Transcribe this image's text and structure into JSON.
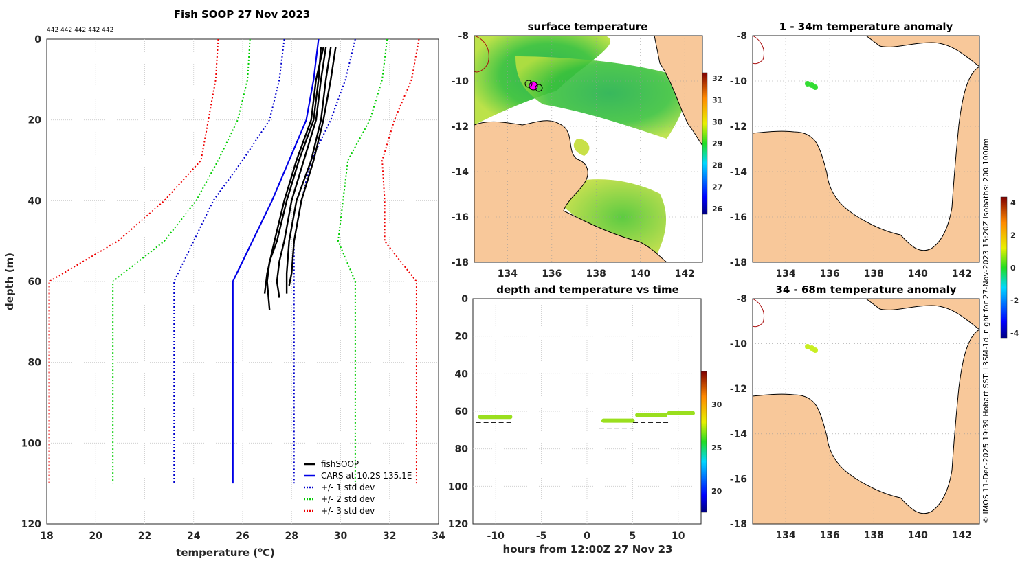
{
  "profile": {
    "title": "Fish SOOP 27 Nov 2023",
    "profile_ids": "442 442 442 442 442",
    "xlabel": "temperature (",
    "xlabel_sup": "o",
    "xlabel_end": "C)",
    "ylabel": "depth (m)",
    "xticks": [
      "18",
      "20",
      "22",
      "24",
      "26",
      "28",
      "30",
      "32",
      "34"
    ],
    "yticks": [
      "0",
      "20",
      "40",
      "60",
      "80",
      "100",
      "120"
    ],
    "legend": [
      "fishSOOP",
      "CARS at 10.2S 135.1E",
      "+/- 1 std dev",
      "+/- 2 std dev",
      "+/- 3 std dev"
    ],
    "colors": {
      "fish": "#000000",
      "cars": "#0000e6",
      "std1": "#0000cc",
      "std2": "#00cc00",
      "std3": "#ee0000"
    }
  },
  "surface": {
    "title": "surface temperature",
    "xticks": [
      "134",
      "136",
      "138",
      "140",
      "142"
    ],
    "yticks": [
      "-8",
      "-10",
      "-12",
      "-14",
      "-16",
      "-18"
    ],
    "cbticks": [
      "32",
      "31",
      "30",
      "29",
      "28",
      "27",
      "26"
    ]
  },
  "anom1": {
    "title": "1 - 34m temperature anomaly",
    "xticks": [
      "134",
      "136",
      "138",
      "140",
      "142"
    ],
    "yticks": [
      "-8",
      "-10",
      "-12",
      "-14",
      "-16",
      "-18"
    ]
  },
  "anom2": {
    "title": "34 - 68m temperature anomaly",
    "xticks": [
      "134",
      "136",
      "138",
      "140",
      "142"
    ],
    "yticks": [
      "-8",
      "-10",
      "-12",
      "-14",
      "-16",
      "-18"
    ]
  },
  "anom_cb": {
    "ticks": [
      "4",
      "2",
      "0",
      "-2",
      "-4"
    ]
  },
  "timeseries": {
    "title": "depth and temperature vs time",
    "xlabel": "hours from 12:00Z 27 Nov 23",
    "xticks": [
      "-10",
      "-5",
      "0",
      "5",
      "10"
    ],
    "yticks": [
      "0",
      "20",
      "40",
      "60",
      "80",
      "100",
      "120"
    ],
    "cbticks": [
      "30",
      "25",
      "20"
    ]
  },
  "credit": "© IMOS 11-Dec-2025 19:39 Hobart SST: L3SM-1d_night for 27-Nov-2023 15:20Z isobaths: 200  1000m",
  "chart_data": [
    {
      "type": "line",
      "title": "Fish SOOP 27 Nov 2023",
      "xlabel": "temperature (oC)",
      "ylabel": "depth (m)",
      "xlim": [
        18,
        34
      ],
      "ylim": [
        120,
        0
      ],
      "series": [
        {
          "name": "CARS at 10.2S 135.1E",
          "x": [
            29.1,
            28.9,
            28.6,
            27.9,
            27.2,
            26.4,
            25.6,
            25.6
          ],
          "y": [
            0,
            10,
            20,
            30,
            40,
            50,
            60,
            110
          ]
        },
        {
          "name": "+/- 1 std dev (upper)",
          "x": [
            30.6,
            30.2,
            29.6,
            28.8,
            28.4,
            28.1,
            28.1
          ],
          "y": [
            0,
            10,
            20,
            30,
            40,
            50,
            110
          ]
        },
        {
          "name": "+/- 1 std dev (lower)",
          "x": [
            27.7,
            27.5,
            27.1,
            26.0,
            24.8,
            23.2,
            23.2
          ],
          "y": [
            0,
            10,
            20,
            30,
            40,
            60,
            110
          ]
        },
        {
          "name": "+/- 2 std dev (upper)",
          "x": [
            31.9,
            31.7,
            31.2,
            30.3,
            30.1,
            29.9,
            30.6,
            30.6
          ],
          "y": [
            0,
            10,
            20,
            30,
            40,
            50,
            60,
            110
          ]
        },
        {
          "name": "+/- 2 std dev (lower)",
          "x": [
            26.3,
            26.2,
            25.8,
            25.0,
            24.1,
            22.8,
            20.7,
            20.7
          ],
          "y": [
            0,
            10,
            20,
            30,
            40,
            50,
            60,
            110
          ]
        },
        {
          "name": "+/- 3 std dev (upper)",
          "x": [
            33.2,
            32.9,
            32.2,
            31.7,
            31.8,
            31.8,
            33.1,
            33.1
          ],
          "y": [
            0,
            10,
            20,
            30,
            40,
            50,
            60,
            110
          ]
        },
        {
          "name": "+/- 3 std dev (lower)",
          "x": [
            25.0,
            24.9,
            24.6,
            24.3,
            22.8,
            20.9,
            18.1,
            18.1
          ],
          "y": [
            0,
            10,
            20,
            30,
            40,
            50,
            60,
            110
          ]
        },
        {
          "name": "fishSOOP cast 1",
          "x": [
            29.2,
            29.1,
            28.9,
            28.3,
            27.8,
            27.4,
            27.1,
            27.0,
            27.1
          ],
          "y": [
            2,
            10,
            20,
            30,
            40,
            50,
            55,
            60,
            67
          ]
        },
        {
          "name": "fishSOOP cast 2",
          "x": [
            29.4,
            29.2,
            29.0,
            28.5,
            28.0,
            27.7,
            27.5,
            27.4,
            27.5
          ],
          "y": [
            2,
            10,
            20,
            30,
            40,
            50,
            55,
            60,
            64
          ]
        },
        {
          "name": "fishSOOP cast 3",
          "x": [
            29.6,
            29.4,
            29.2,
            28.8,
            28.2,
            27.9,
            27.8,
            27.8
          ],
          "y": [
            2,
            10,
            20,
            30,
            40,
            50,
            58,
            63
          ]
        },
        {
          "name": "fishSOOP cast 4",
          "x": [
            29.8,
            29.6,
            29.3,
            28.9,
            28.4,
            28.1,
            28.0,
            27.9
          ],
          "y": [
            2,
            10,
            20,
            30,
            40,
            50,
            58,
            61
          ]
        },
        {
          "name": "fishSOOP cast 5",
          "x": [
            29.3,
            29.0,
            28.8,
            28.2,
            27.7,
            27.3,
            27.0,
            26.9
          ],
          "y": [
            2,
            10,
            20,
            30,
            40,
            50,
            58,
            63
          ]
        }
      ]
    },
    {
      "type": "scatter",
      "title": "depth and temperature vs time",
      "xlabel": "hours from 12:00Z 27 Nov 23",
      "ylabel": "depth (m)",
      "xlim": [
        -12.5,
        12.5
      ],
      "ylim": [
        120,
        0
      ],
      "casts": [
        {
          "start": -11.7,
          "end": -8.4,
          "bottom_depth": 63,
          "marker_depth": 66
        },
        {
          "start": 1.8,
          "end": 5.0,
          "bottom_depth": 65,
          "marker_depth": 69
        },
        {
          "start": 5.5,
          "end": 8.6,
          "bottom_depth": 62,
          "marker_depth": 66
        },
        {
          "start": 9.0,
          "end": 11.6,
          "bottom_depth": 61,
          "marker_depth": 62
        }
      ],
      "color_range": [
        18,
        34
      ]
    }
  ]
}
